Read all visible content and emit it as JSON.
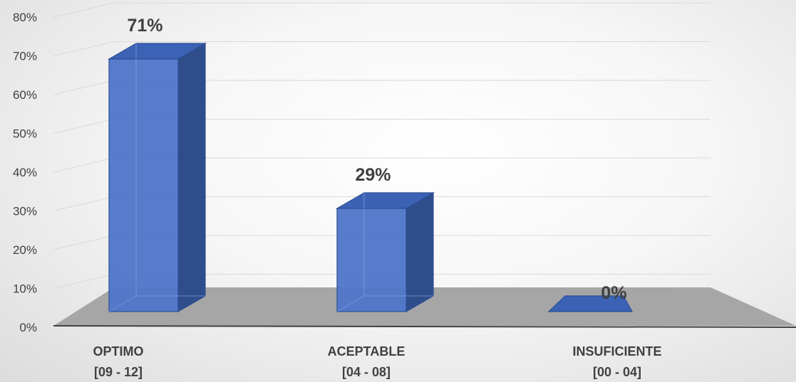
{
  "chart_data": {
    "type": "bar",
    "title": "",
    "xlabel": "",
    "ylabel": "",
    "categories": [
      [
        "OPTIMO",
        "[09 - 12]"
      ],
      [
        "ACEPTABLE",
        "[04 - 08]"
      ],
      [
        "INSUFICIENTE",
        "[00 - 04]"
      ]
    ],
    "values": [
      71,
      29,
      0
    ],
    "data_labels": [
      "71%",
      "29%",
      "0%"
    ],
    "ylim": [
      0,
      80
    ],
    "yticks": [
      "0%",
      "10%",
      "20%",
      "30%",
      "40%",
      "50%",
      "60%",
      "70%",
      "80%"
    ],
    "grid": true,
    "legend": "none",
    "style": "3d-column",
    "colors": {
      "bar_front": "#4f75c9",
      "bar_side": "#2f4d8a",
      "bar_top": "#3c62b5",
      "bar_stroke": "#2c4f95",
      "floor": "#a6a6a6",
      "gridline": "#d9d9d9",
      "text": "#404040"
    }
  }
}
